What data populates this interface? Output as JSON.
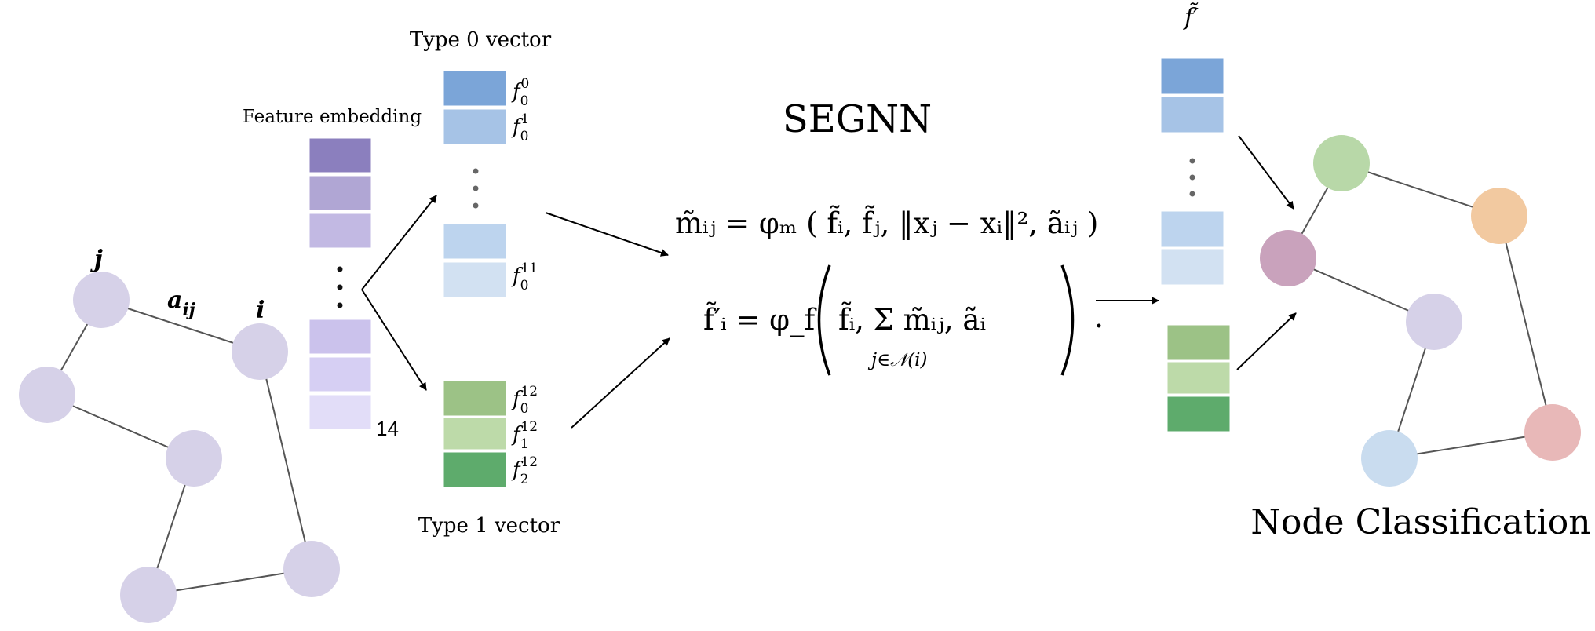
{
  "title": "SEGNN",
  "feature_embedding": {
    "label": "Feature embedding",
    "count_label": "14",
    "colors": [
      "#8b7fbe",
      "#b0a6d4",
      "#c2b9e3",
      "#cbc2ec",
      "#d6cff3",
      "#e2ddf8"
    ]
  },
  "type0": {
    "label": "Type 0 vector",
    "labels": [
      {
        "base": "f",
        "sub": "0",
        "sup": "0"
      },
      {
        "base": "f",
        "sub": "0",
        "sup": "1"
      },
      {
        "base": "f",
        "sub": "0",
        "sup": "11"
      }
    ],
    "colors": [
      "#7ba5d8",
      "#a6c3e6",
      "#bdd4ee",
      "#d2e1f2"
    ]
  },
  "type1": {
    "label": "Type 1 vector",
    "labels": [
      {
        "base": "f",
        "sub": "0",
        "sup": "12"
      },
      {
        "base": "f",
        "sub": "1",
        "sup": "12"
      },
      {
        "base": "f",
        "sub": "2",
        "sup": "12"
      }
    ],
    "colors": [
      "#9cc286",
      "#bddaa9",
      "#5eab6c"
    ]
  },
  "output": {
    "label": "f̃′",
    "colors_top": [
      "#7ba5d8",
      "#a6c3e6",
      "#bdd4ee",
      "#d2e1f2"
    ],
    "colors_bottom": [
      "#9cc286",
      "#bddaa9",
      "#5eab6c"
    ]
  },
  "graph_labels": {
    "j": "j",
    "i": "i",
    "edge": "a",
    "edge_sub": "ij"
  },
  "equations": {
    "eq1": "m̃ᵢⱼ = φₘ ( f̃ᵢ, f̃ⱼ, ‖xⱼ − xᵢ‖², ãᵢⱼ )",
    "eq2_lhs": "f̃′ᵢ = φ_f",
    "eq2_body": "f̃ᵢ,  Σ  m̃ᵢⱼ, ãᵢ",
    "eq2_sum_sub": "j∈𝒩(i)"
  },
  "node_classification": {
    "label": "Node Classification",
    "colors": [
      "#b8d8a8",
      "#f2c9a0",
      "#c9a2bc",
      "#d6d1e8",
      "#c9dcef",
      "#e8b8b8"
    ]
  },
  "input_node_color": "#d6d1e8"
}
